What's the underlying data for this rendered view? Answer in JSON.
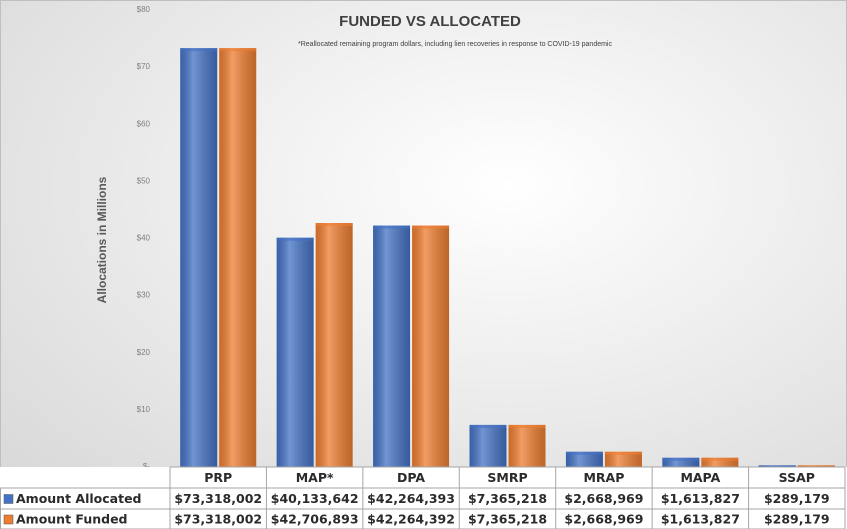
{
  "chart_data": {
    "type": "bar",
    "title": "FUNDED VS ALLOCATED",
    "annotation": "*Reallocated remaining program dollars, including lien recoveries in response to COVID-19 pandemic",
    "y_label": "Allocations in Millions",
    "categories": [
      "PRP",
      "MAP*",
      "DPA",
      "SMRP",
      "MRAP",
      "MAPA",
      "SSAP"
    ],
    "series": [
      {
        "name": "Amount Allocated",
        "color": "#4472c4",
        "values": [
          73.318002,
          40.133642,
          42.264393,
          7.365218,
          2.668969,
          1.613827,
          0.289179
        ],
        "value_labels": [
          "$73,318,002",
          "$40,133,642",
          "$42,264,393",
          "$7,365,218",
          "$2,668,969",
          "$1,613,827",
          "$289,179"
        ]
      },
      {
        "name": "Amount Funded",
        "color": "#ed7d31",
        "values": [
          73.318002,
          42.706893,
          42.264392,
          7.365218,
          2.668969,
          1.613827,
          0.289179
        ],
        "value_labels": [
          "$73,318,002",
          "$42,706,893",
          "$42,264,392",
          "$7,365,218",
          "$2,668,969",
          "$1,613,827",
          "$289,179"
        ]
      }
    ],
    "ylim": [
      0,
      80
    ],
    "yticks": [
      {
        "value": 0,
        "label": "$-"
      },
      {
        "value": 10,
        "label": "$10"
      },
      {
        "value": 20,
        "label": "$20"
      },
      {
        "value": 30,
        "label": "$30"
      },
      {
        "value": 40,
        "label": "$40"
      },
      {
        "value": 50,
        "label": "$50"
      },
      {
        "value": 60,
        "label": "$60"
      },
      {
        "value": 70,
        "label": "$70"
      },
      {
        "value": 80,
        "label": "$80"
      }
    ],
    "grid": false
  }
}
